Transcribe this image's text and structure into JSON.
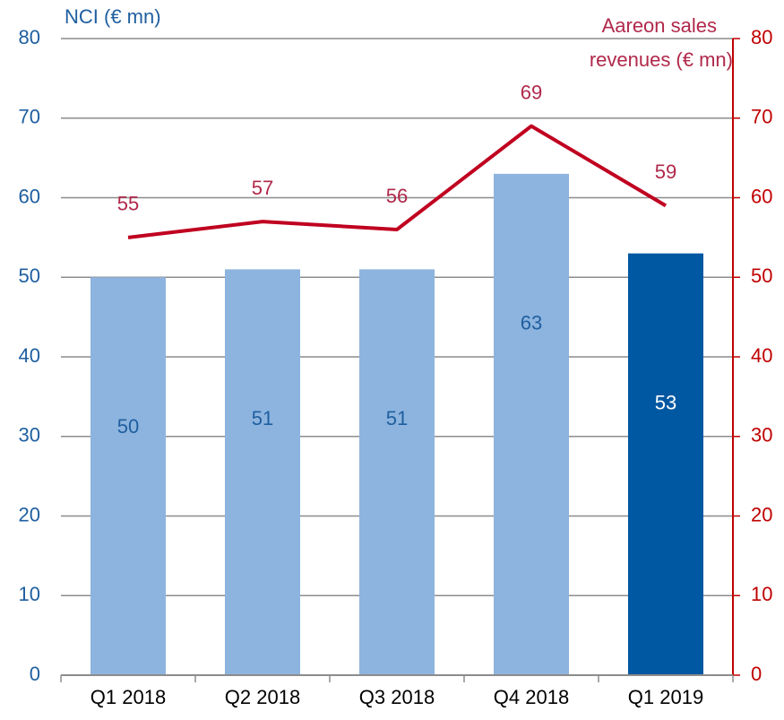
{
  "chart_data": {
    "type": "bar_line",
    "ylabel": "NCI (€ mn)",
    "y2label": [
      "Aareon sales",
      "revenues (€ mn)"
    ],
    "categories": [
      "Q1 2018",
      "Q2 2018",
      "Q3 2018",
      "Q4 2018",
      "Q1 2019"
    ],
    "series": [
      {
        "type": "bar",
        "colors": [
          "#8db4de",
          "#8db4de",
          "#8db4de",
          "#8db4de",
          "#0057a2"
        ],
        "label_colors": [
          "#1f5fa0",
          "#1f5fa0",
          "#1f5fa0",
          "#1f5fa0",
          "#ffffff"
        ],
        "values": [
          50,
          51,
          51,
          63,
          53
        ]
      },
      {
        "type": "line",
        "axis": "y2",
        "color": "#c00020",
        "label_color": "#b0284a",
        "values": [
          55,
          57,
          56,
          69,
          59
        ]
      }
    ],
    "ylim": [
      0,
      80
    ],
    "yticks": [
      0,
      10,
      20,
      30,
      40,
      50,
      60,
      70,
      80
    ],
    "y2lim": [
      0,
      80
    ],
    "y2ticks": [
      0,
      10,
      20,
      30,
      40,
      50,
      60,
      70,
      80
    ],
    "grid": true
  }
}
